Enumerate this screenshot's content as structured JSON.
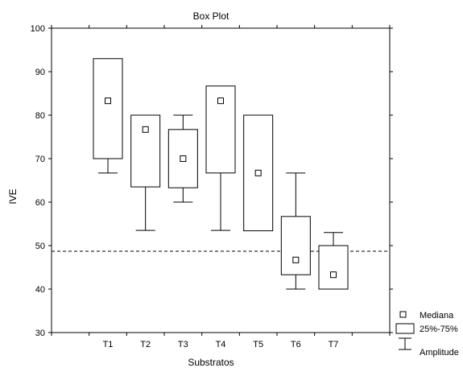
{
  "chart_data": {
    "type": "boxplot",
    "title": "Box Plot",
    "xlabel": "Substratos",
    "ylabel": "IVE",
    "ylim": [
      30,
      100
    ],
    "yticks": [
      30,
      40,
      50,
      60,
      70,
      80,
      90,
      100
    ],
    "grid": false,
    "legend_position": "bottom-right",
    "reference_line": 48.7,
    "categories": [
      "T1",
      "T2",
      "T3",
      "T4",
      "T5",
      "T6",
      "T7"
    ],
    "boxes": [
      {
        "label": "T1",
        "median": 83.3,
        "q1": 70.0,
        "q3": 93.0,
        "min": 66.7,
        "max": 93.0
      },
      {
        "label": "T2",
        "median": 76.7,
        "q1": 63.5,
        "q3": 80.0,
        "min": 53.5,
        "max": 80.0
      },
      {
        "label": "T3",
        "median": 70.0,
        "q1": 63.3,
        "q3": 76.7,
        "min": 60.0,
        "max": 80.0
      },
      {
        "label": "T4",
        "median": 83.3,
        "q1": 66.7,
        "q3": 86.7,
        "min": 53.5,
        "max": 86.7
      },
      {
        "label": "T5",
        "median": 66.7,
        "q1": 53.4,
        "q3": 80.0,
        "min": 53.4,
        "max": 80.0
      },
      {
        "label": "T6",
        "median": 46.7,
        "q1": 43.3,
        "q3": 56.7,
        "min": 40.0,
        "max": 66.7
      },
      {
        "label": "T7",
        "median": 43.3,
        "q1": 40.0,
        "q3": 50.0,
        "min": 40.0,
        "max": 53.0
      }
    ],
    "legend": {
      "median": "Mediana",
      "box": "25%-75%",
      "range": "Amplitude"
    }
  }
}
